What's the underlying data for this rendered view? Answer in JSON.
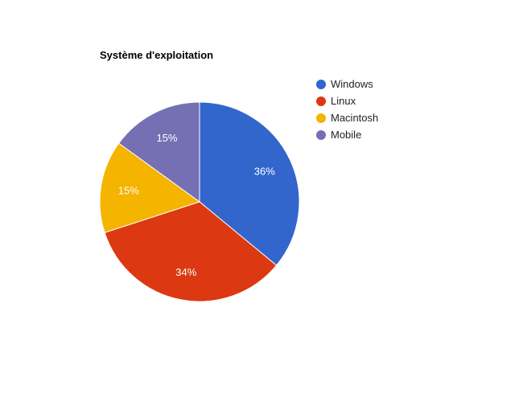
{
  "chart_data": {
    "type": "pie",
    "title": "Système d'exploitation",
    "legend_position": "right",
    "slices": [
      {
        "label": "Windows",
        "value": 36,
        "display": "36%",
        "color": "#3366cc"
      },
      {
        "label": "Linux",
        "value": 34,
        "display": "34%",
        "color": "#dc3912"
      },
      {
        "label": "Macintosh",
        "value": 15,
        "display": "15%",
        "color": "#f4b400"
      },
      {
        "label": "Mobile",
        "value": 15,
        "display": "15%",
        "color": "#7570b3"
      }
    ]
  }
}
